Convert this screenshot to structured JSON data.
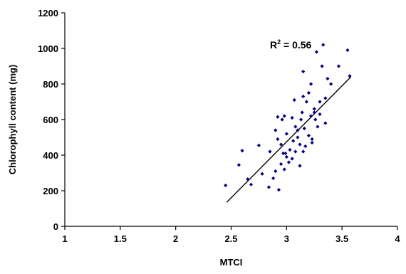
{
  "chart_data": {
    "type": "scatter",
    "xlabel": "MTCI",
    "ylabel": "Chlorophyll content (mg)",
    "xlim": [
      1,
      4
    ],
    "ylim": [
      0,
      1200
    ],
    "xticks": [
      1,
      1.5,
      2,
      2.5,
      3,
      3.5,
      4
    ],
    "xtick_labels": [
      "1",
      "1.5",
      "2",
      "2.5",
      "3",
      "3.5",
      "4"
    ],
    "yticks": [
      0,
      200,
      400,
      600,
      800,
      1000,
      1200
    ],
    "ytick_labels": [
      "0",
      "200",
      "400",
      "600",
      "800",
      "1000",
      "1200"
    ],
    "grid": false,
    "marker_color": "#000080",
    "annotation": {
      "base": "R",
      "sup": "2",
      "rest": " = 0.56",
      "x": 2.85,
      "y": 1000
    },
    "trendline": {
      "x": [
        2.46,
        3.58
      ],
      "y": [
        135,
        840
      ]
    },
    "points": [
      {
        "x": 2.45,
        "y": 230
      },
      {
        "x": 2.57,
        "y": 345
      },
      {
        "x": 2.6,
        "y": 425
      },
      {
        "x": 2.65,
        "y": 265
      },
      {
        "x": 2.68,
        "y": 235
      },
      {
        "x": 2.75,
        "y": 455
      },
      {
        "x": 2.78,
        "y": 295
      },
      {
        "x": 2.84,
        "y": 220
      },
      {
        "x": 2.85,
        "y": 420
      },
      {
        "x": 2.88,
        "y": 270
      },
      {
        "x": 2.9,
        "y": 310
      },
      {
        "x": 2.9,
        "y": 540
      },
      {
        "x": 2.92,
        "y": 490
      },
      {
        "x": 2.92,
        "y": 615
      },
      {
        "x": 2.93,
        "y": 205
      },
      {
        "x": 2.95,
        "y": 350
      },
      {
        "x": 2.95,
        "y": 460
      },
      {
        "x": 2.96,
        "y": 600
      },
      {
        "x": 2.97,
        "y": 410
      },
      {
        "x": 2.98,
        "y": 320
      },
      {
        "x": 2.98,
        "y": 620
      },
      {
        "x": 3.0,
        "y": 390
      },
      {
        "x": 3.0,
        "y": 520
      },
      {
        "x": 3.02,
        "y": 360
      },
      {
        "x": 3.03,
        "y": 430
      },
      {
        "x": 3.05,
        "y": 610
      },
      {
        "x": 3.05,
        "y": 380
      },
      {
        "x": 3.06,
        "y": 480
      },
      {
        "x": 3.07,
        "y": 710
      },
      {
        "x": 3.08,
        "y": 420
      },
      {
        "x": 3.1,
        "y": 500
      },
      {
        "x": 3.1,
        "y": 540
      },
      {
        "x": 3.12,
        "y": 460
      },
      {
        "x": 3.12,
        "y": 340
      },
      {
        "x": 3.13,
        "y": 600
      },
      {
        "x": 3.14,
        "y": 640
      },
      {
        "x": 3.15,
        "y": 420
      },
      {
        "x": 3.15,
        "y": 870
      },
      {
        "x": 3.16,
        "y": 550
      },
      {
        "x": 3.17,
        "y": 450
      },
      {
        "x": 3.18,
        "y": 700
      },
      {
        "x": 3.2,
        "y": 510
      },
      {
        "x": 3.2,
        "y": 750
      },
      {
        "x": 3.22,
        "y": 620
      },
      {
        "x": 3.23,
        "y": 470
      },
      {
        "x": 3.23,
        "y": 490
      },
      {
        "x": 3.25,
        "y": 640
      },
      {
        "x": 3.25,
        "y": 660
      },
      {
        "x": 3.26,
        "y": 600
      },
      {
        "x": 3.27,
        "y": 980
      },
      {
        "x": 3.28,
        "y": 560
      },
      {
        "x": 3.3,
        "y": 630
      },
      {
        "x": 3.3,
        "y": 700
      },
      {
        "x": 3.32,
        "y": 900
      },
      {
        "x": 3.33,
        "y": 1020
      },
      {
        "x": 3.35,
        "y": 580
      },
      {
        "x": 3.35,
        "y": 720
      },
      {
        "x": 3.37,
        "y": 830
      },
      {
        "x": 3.4,
        "y": 800
      },
      {
        "x": 3.47,
        "y": 900
      },
      {
        "x": 3.55,
        "y": 990
      },
      {
        "x": 3.57,
        "y": 845
      },
      {
        "x": 3.22,
        "y": 800
      },
      {
        "x": 3.15,
        "y": 730
      },
      {
        "x": 3.08,
        "y": 560
      },
      {
        "x": 2.99,
        "y": 410
      }
    ]
  }
}
